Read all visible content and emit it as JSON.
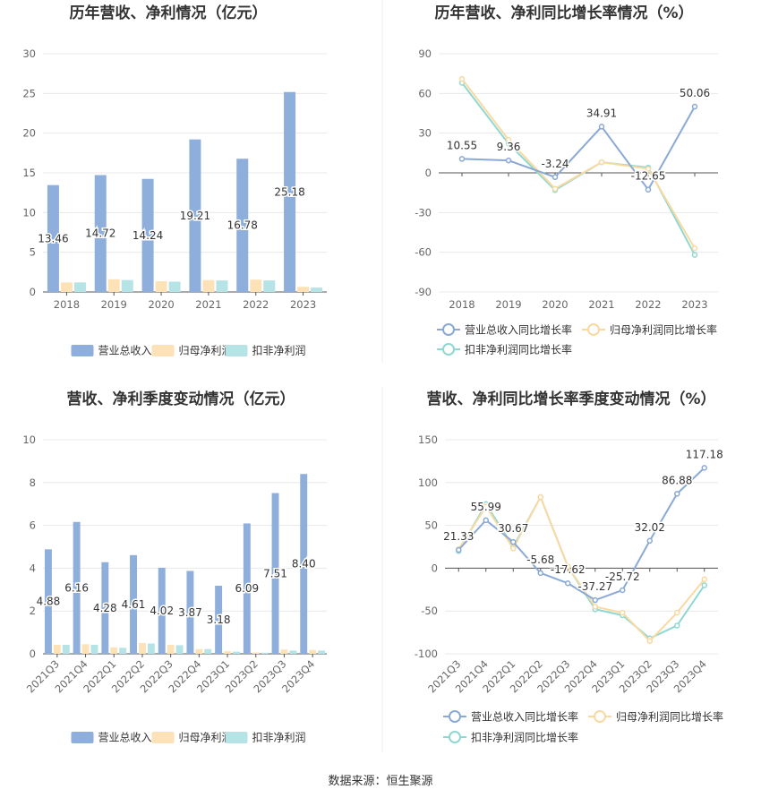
{
  "source": "数据来源：恒生聚源",
  "colors": {
    "revenue": "#8eaedb",
    "netprofit": "#fde2b8",
    "deducted": "#b6e3e5",
    "revenue_line": "#8aa9d6",
    "netprofit_line": "#fad9a1",
    "deducted_line": "#8fd8d2",
    "grid": "#e8e8e8",
    "axis": "#666666",
    "divider": "#eeeeee"
  },
  "chart_data": [
    {
      "type": "bar",
      "title": "历年营收、净利情况（亿元）",
      "categories": [
        "2018",
        "2019",
        "2020",
        "2021",
        "2022",
        "2023"
      ],
      "ylim": [
        0,
        30
      ],
      "yticks": [
        0,
        5,
        10,
        15,
        20,
        25,
        30
      ],
      "series": [
        {
          "name": "营业总收入",
          "values": [
            13.46,
            14.72,
            14.24,
            19.21,
            16.78,
            25.18
          ],
          "labels": [
            "13.46",
            "14.72",
            "14.24",
            "19.21",
            "16.78",
            "25.18"
          ]
        },
        {
          "name": "归母净利润",
          "values": [
            1.2,
            1.6,
            1.35,
            1.5,
            1.55,
            0.65
          ]
        },
        {
          "name": "扣非净利润",
          "values": [
            1.2,
            1.5,
            1.3,
            1.45,
            1.45,
            0.55
          ]
        }
      ]
    },
    {
      "type": "line",
      "title": "历年营收、净利同比增长率情况（%）",
      "categories": [
        "2018",
        "2019",
        "2020",
        "2021",
        "2022",
        "2023"
      ],
      "ylim": [
        -90,
        90
      ],
      "yticks": [
        -90,
        -60,
        -30,
        0,
        30,
        60,
        90
      ],
      "series": [
        {
          "name": "营业总收入同比增长率",
          "values": [
            10.55,
            9.36,
            -3.24,
            34.91,
            -12.65,
            50.06
          ],
          "labels": [
            "10.55",
            "9.36",
            "-3.24",
            "34.91",
            "-12.65",
            "50.06"
          ]
        },
        {
          "name": "归母净利润同比增长率",
          "values": [
            71,
            25,
            -12,
            8,
            3,
            -57
          ]
        },
        {
          "name": "扣非净利润同比增长率",
          "values": [
            68,
            22,
            -13,
            8,
            4,
            -62
          ]
        }
      ]
    },
    {
      "type": "bar",
      "title": "营收、净利季度变动情况（亿元）",
      "categories": [
        "2021Q3",
        "2021Q4",
        "2022Q1",
        "2022Q2",
        "2022Q3",
        "2022Q4",
        "2023Q1",
        "2023Q2",
        "2023Q3",
        "2023Q4"
      ],
      "ylim": [
        0,
        10
      ],
      "yticks": [
        0,
        2,
        4,
        6,
        8,
        10
      ],
      "series": [
        {
          "name": "营业总收入",
          "values": [
            4.88,
            6.16,
            4.28,
            4.61,
            4.02,
            3.87,
            3.18,
            6.09,
            7.51,
            8.4
          ],
          "labels": [
            "4.88",
            "6.16",
            "4.28",
            "4.61",
            "4.02",
            "3.87",
            "3.18",
            "6.09",
            "7.51",
            "8.40"
          ]
        },
        {
          "name": "归母净利润",
          "values": [
            0.42,
            0.45,
            0.3,
            0.5,
            0.42,
            0.22,
            0.12,
            0.06,
            0.2,
            0.18
          ]
        },
        {
          "name": "扣非净利润",
          "values": [
            0.42,
            0.42,
            0.28,
            0.48,
            0.4,
            0.22,
            0.1,
            0.05,
            0.15,
            0.15
          ]
        }
      ]
    },
    {
      "type": "line",
      "title": "营收、净利同比增长率季度变动情况（%）",
      "categories": [
        "2021Q3",
        "2021Q4",
        "2022Q1",
        "2022Q2",
        "2022Q3",
        "2022Q4",
        "2023Q1",
        "2023Q2",
        "2023Q3",
        "2023Q4"
      ],
      "ylim": [
        -100,
        150
      ],
      "yticks": [
        -100,
        -50,
        0,
        50,
        100,
        150
      ],
      "series": [
        {
          "name": "营业总收入同比增长率",
          "values": [
            21.33,
            55.99,
            30.67,
            -5.68,
            -17.62,
            -37.27,
            -25.72,
            32.02,
            86.88,
            117.18
          ],
          "labels": [
            "21.33",
            "55.99",
            "30.67",
            "-5.68",
            "-17.62",
            "-37.27",
            "-25.72",
            "32.02",
            "86.88",
            "117.18"
          ]
        },
        {
          "name": "归母净利润同比增长率",
          "values": [
            22,
            72,
            23,
            83,
            2,
            -45,
            -52,
            -85,
            -52,
            -13
          ]
        },
        {
          "name": "扣非净利润同比增长率",
          "values": [
            20,
            75,
            25,
            83,
            2,
            -48,
            -55,
            -82,
            -67,
            -20
          ]
        }
      ]
    }
  ]
}
